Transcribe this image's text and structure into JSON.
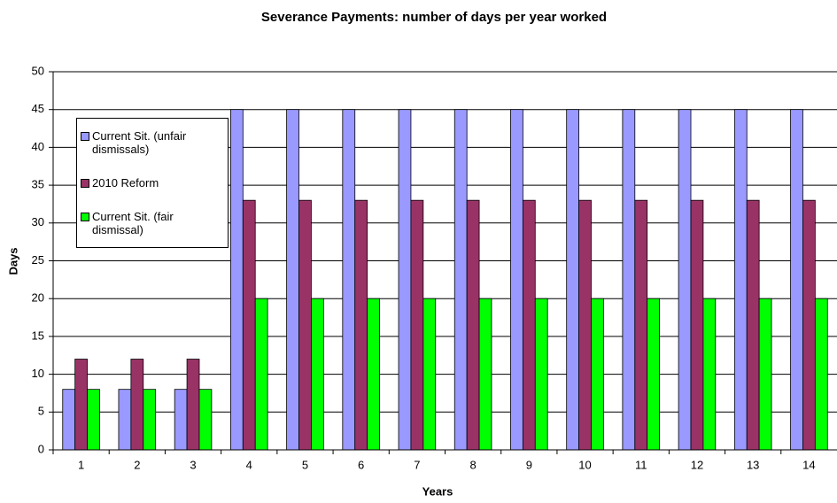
{
  "chart_data": {
    "type": "bar",
    "title": "Severance Payments: number of days per year worked",
    "x_label": "Years",
    "y_label": "Days",
    "categories": [
      "1",
      "2",
      "3",
      "4",
      "5",
      "6",
      "7",
      "8",
      "9",
      "10",
      "11",
      "12",
      "13",
      "14"
    ],
    "series": [
      {
        "name": "Current Sit. (unfair dismissals)",
        "color": "#9999ff",
        "values": [
          8,
          8,
          8,
          45,
          45,
          45,
          45,
          45,
          45,
          45,
          45,
          45,
          45,
          45
        ]
      },
      {
        "name": "2010 Reform",
        "color": "#993366",
        "values": [
          12,
          12,
          12,
          33,
          33,
          33,
          33,
          33,
          33,
          33,
          33,
          33,
          33,
          33
        ]
      },
      {
        "name": "Current Sit. (fair dismissal)",
        "color": "#00ff00",
        "values": [
          8,
          8,
          8,
          20,
          20,
          20,
          20,
          20,
          20,
          20,
          20,
          20,
          20,
          20
        ]
      }
    ],
    "ylim": [
      0,
      50
    ],
    "yticks": [
      0,
      5,
      10,
      15,
      20,
      25,
      30,
      35,
      40,
      45,
      50
    ],
    "grid": true,
    "legend": "upper left"
  }
}
